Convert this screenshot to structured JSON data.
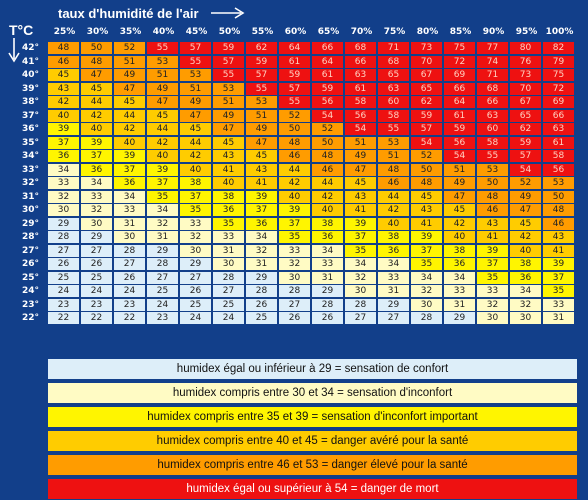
{
  "chart_data": {
    "type": "heatmap",
    "title": "taux d'humidité de l'air",
    "y_axis_label": "T°C",
    "columns": [
      "25%",
      "30%",
      "35%",
      "40%",
      "45%",
      "50%",
      "55%",
      "60%",
      "65%",
      "70%",
      "75%",
      "80%",
      "85%",
      "90%",
      "95%",
      "100%"
    ],
    "rows": [
      {
        "label": "42°",
        "values": [
          48,
          50,
          52,
          55,
          57,
          59,
          62,
          64,
          66,
          68,
          71,
          73,
          75,
          77,
          80,
          82
        ]
      },
      {
        "label": "41°",
        "values": [
          46,
          48,
          51,
          53,
          55,
          57,
          59,
          61,
          64,
          66,
          68,
          70,
          72,
          74,
          76,
          79
        ]
      },
      {
        "label": "40°",
        "values": [
          45,
          47,
          49,
          51,
          53,
          55,
          57,
          59,
          61,
          63,
          65,
          67,
          69,
          71,
          73,
          75
        ]
      },
      {
        "label": "39°",
        "values": [
          43,
          45,
          47,
          49,
          51,
          53,
          55,
          57,
          59,
          61,
          63,
          65,
          66,
          68,
          70,
          72
        ]
      },
      {
        "label": "38°",
        "values": [
          42,
          44,
          45,
          47,
          49,
          51,
          53,
          55,
          56,
          58,
          60,
          62,
          64,
          66,
          67,
          69
        ]
      },
      {
        "label": "37°",
        "values": [
          40,
          42,
          44,
          45,
          47,
          49,
          51,
          52,
          54,
          56,
          58,
          59,
          61,
          63,
          65,
          66
        ]
      },
      {
        "label": "36°",
        "values": [
          39,
          40,
          42,
          44,
          45,
          47,
          49,
          50,
          52,
          54,
          55,
          57,
          59,
          60,
          62,
          63
        ]
      },
      {
        "label": "35°",
        "values": [
          37,
          39,
          40,
          42,
          44,
          45,
          47,
          48,
          50,
          51,
          53,
          54,
          56,
          58,
          59,
          61
        ]
      },
      {
        "label": "34°",
        "values": [
          36,
          37,
          39,
          40,
          42,
          43,
          45,
          46,
          48,
          49,
          51,
          52,
          54,
          55,
          57,
          58
        ]
      },
      {
        "label": "33°",
        "values": [
          34,
          36,
          37,
          39,
          40,
          41,
          43,
          44,
          46,
          47,
          48,
          50,
          51,
          53,
          54,
          56
        ]
      },
      {
        "label": "32°",
        "values": [
          33,
          34,
          36,
          37,
          38,
          40,
          41,
          42,
          44,
          45,
          46,
          48,
          49,
          50,
          52,
          53
        ]
      },
      {
        "label": "31°",
        "values": [
          32,
          33,
          34,
          35,
          37,
          38,
          39,
          40,
          42,
          43,
          44,
          45,
          47,
          48,
          49,
          50
        ]
      },
      {
        "label": "30°",
        "values": [
          30,
          32,
          33,
          34,
          35,
          36,
          37,
          39,
          40,
          41,
          42,
          43,
          45,
          46,
          47,
          48
        ]
      },
      {
        "label": "29°",
        "values": [
          29,
          30,
          31,
          32,
          33,
          35,
          36,
          37,
          38,
          39,
          40,
          41,
          42,
          43,
          45,
          46
        ]
      },
      {
        "label": "28°",
        "values": [
          28,
          29,
          30,
          31,
          32,
          33,
          34,
          35,
          36,
          37,
          38,
          39,
          40,
          41,
          42,
          43
        ]
      },
      {
        "label": "27°",
        "values": [
          27,
          27,
          28,
          29,
          30,
          31,
          32,
          33,
          34,
          35,
          36,
          37,
          38,
          39,
          40,
          41
        ]
      },
      {
        "label": "26°",
        "values": [
          26,
          26,
          27,
          28,
          29,
          30,
          31,
          32,
          33,
          34,
          34,
          35,
          36,
          37,
          38,
          39
        ]
      },
      {
        "label": "25°",
        "values": [
          25,
          25,
          26,
          27,
          27,
          28,
          29,
          30,
          31,
          32,
          33,
          34,
          34,
          35,
          36,
          37
        ]
      },
      {
        "label": "24°",
        "values": [
          24,
          24,
          24,
          25,
          26,
          27,
          28,
          28,
          29,
          30,
          31,
          32,
          33,
          33,
          34,
          35
        ]
      },
      {
        "label": "23°",
        "values": [
          23,
          23,
          23,
          24,
          25,
          25,
          26,
          27,
          28,
          28,
          29,
          30,
          31,
          32,
          32,
          33
        ]
      },
      {
        "label": "22°",
        "values": [
          22,
          22,
          22,
          23,
          24,
          24,
          25,
          26,
          26,
          27,
          27,
          28,
          29,
          30,
          30,
          31
        ]
      }
    ],
    "legend": [
      {
        "text": "humidex égal ou inférieur à 29  =  sensation de confort",
        "color": "#ddeef9",
        "max": 29
      },
      {
        "text": "humidex compris entre 30 et 34 = sensation d'inconfort",
        "color": "#fffbc4",
        "max": 34
      },
      {
        "text": "humidex compris entre 35 et 39 = sensation d'inconfort important",
        "color": "#fff500",
        "max": 39
      },
      {
        "text": "humidex compris entre 40 et 45 = danger avéré pour la santé",
        "color": "#ffcc00",
        "max": 45
      },
      {
        "text": "humidex compris entre 46 et 53 = danger élevé pour la santé",
        "color": "#ff9c00",
        "max": 53
      },
      {
        "text": "humidex égal ou supérieur à 54 = danger de mort",
        "color": "#ee1111",
        "max": 999
      }
    ]
  }
}
